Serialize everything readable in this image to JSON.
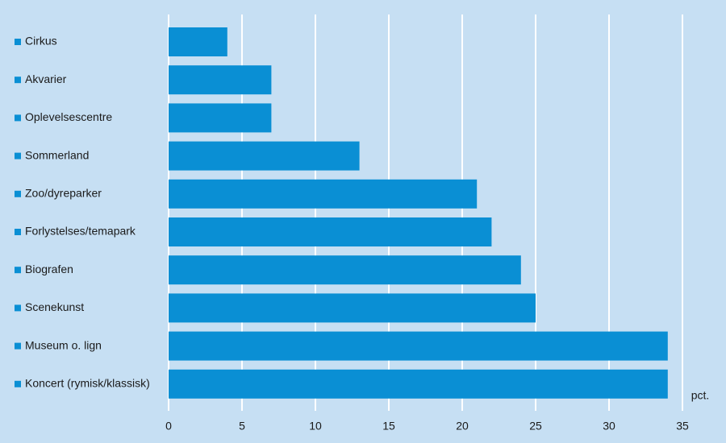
{
  "chart_data": {
    "type": "hbar",
    "categories": [
      "Cirkus",
      "Akvarier",
      "Oplevelsescentre",
      "Sommerland",
      "Zoo/dyreparker",
      "Forlystelses/temapark",
      "Biografen",
      "Scenekunst",
      "Museum o. lign",
      "Koncert (rymisk/klassisk)"
    ],
    "values": [
      4,
      7,
      7,
      13,
      21,
      22,
      24,
      25,
      34,
      34
    ],
    "color": "#0a8fd4",
    "xlim": [
      0,
      35
    ],
    "xticks": [
      0,
      5,
      10,
      15,
      20,
      25,
      30,
      35
    ],
    "x_unit": "pct.",
    "grid": true
  }
}
